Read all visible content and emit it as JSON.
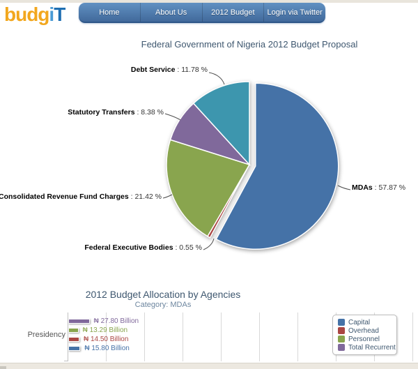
{
  "header": {
    "logo": {
      "part1": "budg",
      "part2": "i",
      "part3": "T"
    },
    "nav_items": [
      {
        "label": "Home"
      },
      {
        "label": "About Us"
      },
      {
        "label": "2012 Budget"
      },
      {
        "label": "Login via Twitter"
      }
    ]
  },
  "colors": {
    "blue": "#4572A7",
    "red": "#AA4643",
    "green": "#89A54E",
    "purple": "#80699B",
    "teal": "#3D96AE",
    "title": "#3E576F",
    "subtitle": "#6D869F"
  },
  "chart_data": [
    {
      "type": "pie",
      "title": "Federal Government of Nigeria 2012 Budget Proposal",
      "slices": [
        {
          "label": "MDAs",
          "pct": 57.87,
          "color": "#4572A7",
          "sliced": true
        },
        {
          "label": "Federal Executive Bodies",
          "pct": 0.55,
          "color": "#AA4643"
        },
        {
          "label": "Consolidated Revenue Fund Charges",
          "pct": 21.42,
          "color": "#89A54E"
        },
        {
          "label": "Statutory Transfers",
          "pct": 8.38,
          "color": "#80699B"
        },
        {
          "label": "Debt Service",
          "pct": 11.78,
          "color": "#3D96AE"
        }
      ]
    },
    {
      "type": "bar",
      "title": "2012 Budget Allocation by Agencies",
      "subtitle": "Category: MDAs",
      "categories": [
        "Presidency"
      ],
      "series": [
        {
          "name": "Total Recurrent",
          "color": "#80699B",
          "values": [
            27.8
          ],
          "labels": [
            "₦ 27.80 Billion"
          ]
        },
        {
          "name": "Personnel",
          "color": "#89A54E",
          "values": [
            13.29
          ],
          "labels": [
            "₦ 13.29 Billion"
          ]
        },
        {
          "name": "Overhead",
          "color": "#AA4643",
          "values": [
            14.5
          ],
          "labels": [
            "₦ 14.50 Billion"
          ]
        },
        {
          "name": "Capital",
          "color": "#4572A7",
          "values": [
            15.8
          ],
          "labels": [
            "₦ 15.80 Billion"
          ]
        }
      ],
      "legend": [
        {
          "label": "Capital",
          "color": "#4572A7"
        },
        {
          "label": "Overhead",
          "color": "#AA4643"
        },
        {
          "label": "Personnel",
          "color": "#89A54E"
        },
        {
          "label": "Total Recurrent",
          "color": "#80699B"
        }
      ],
      "legend_position": "top-right",
      "xlim": [
        0,
        450
      ],
      "grid": true,
      "unit": "₦ Billion"
    }
  ]
}
